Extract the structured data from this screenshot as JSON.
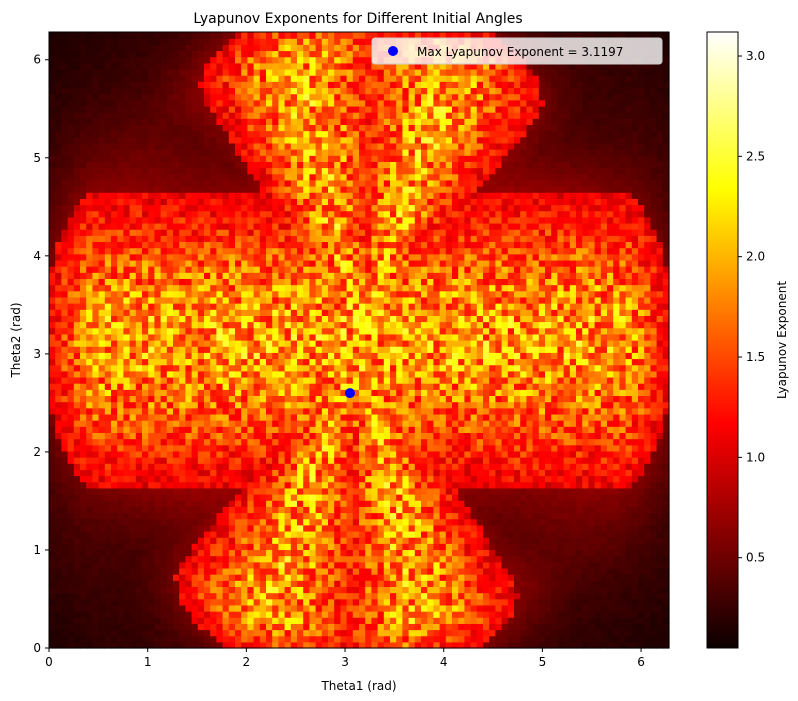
{
  "chart_data": {
    "type": "heatmap",
    "title": "Lyapunov Exponents for Different Initial Angles",
    "xlabel": "Theta1 (rad)",
    "ylabel": "Theta2 (rad)",
    "xlim": [
      0,
      6.283
    ],
    "ylim": [
      0,
      6.283
    ],
    "x_ticks": [
      "0",
      "1",
      "2",
      "3",
      "4",
      "5",
      "6"
    ],
    "y_ticks": [
      "0",
      "1",
      "2",
      "3",
      "4",
      "5",
      "6"
    ],
    "colorbar": {
      "label": "Lyapunov Exponent",
      "colormap": "hot",
      "range": [
        0.05,
        3.1197
      ],
      "ticks": [
        "0.5",
        "1.0",
        "1.5",
        "2.0",
        "2.5",
        "3.0"
      ]
    },
    "grid_resolution": [
      100,
      100
    ],
    "max_point": {
      "x": 3.05,
      "y": 2.6,
      "value": 3.1197,
      "color": "#0000ff"
    },
    "legend": {
      "position": "top-right",
      "entries": [
        {
          "label": "Max Lyapunov Exponent = 3.1197",
          "marker": "circle",
          "color": "#0000ff"
        }
      ]
    },
    "grid": false
  }
}
